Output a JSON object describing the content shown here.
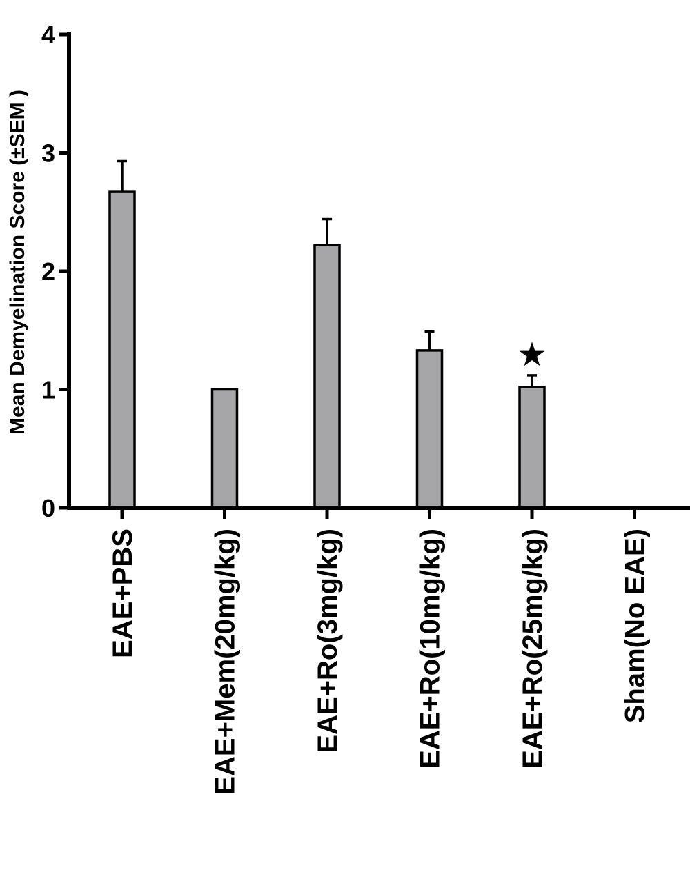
{
  "chart_data": {
    "type": "bar",
    "ylabel": "Mean Demyelination Score (±SEM )",
    "xlabel": "",
    "ylim": [
      0,
      4
    ],
    "yticks": [
      0,
      1,
      2,
      3,
      4
    ],
    "categories": [
      "EAE+PBS",
      "EAE+Mem(20mg/kg)",
      "EAE+Ro(3mg/kg)",
      "EAE+Ro(10mg/kg)",
      "EAE+Ro(25mg/kg)",
      "Sham(No EAE)"
    ],
    "values": [
      2.67,
      1.0,
      2.22,
      1.33,
      1.02,
      0
    ],
    "errors": [
      0.26,
      0,
      0.22,
      0.16,
      0.1,
      0
    ],
    "significance": [
      "",
      "",
      "",
      "",
      "★",
      ""
    ],
    "bar_color": "#a6a6a8"
  }
}
